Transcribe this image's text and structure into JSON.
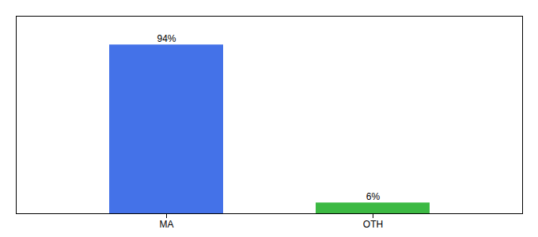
{
  "chart_data": {
    "type": "bar",
    "categories": [
      "MA",
      "OTH"
    ],
    "values": [
      94,
      6
    ],
    "value_labels": [
      "94%",
      "6%"
    ],
    "colors": [
      "#4472e8",
      "#3cb943"
    ],
    "ylim": [
      0,
      110
    ],
    "yticks": [],
    "tick_labels": "x",
    "data_labels": true
  }
}
